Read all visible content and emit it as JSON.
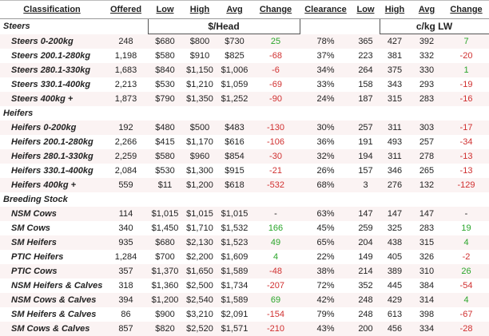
{
  "header": [
    "Classification",
    "Offered",
    "Low",
    "High",
    "Avg",
    "Change",
    "Clearance",
    "Low",
    "High",
    "Avg",
    "Change"
  ],
  "units": [
    "$/Head",
    "c/kg LW"
  ],
  "sections": [
    {
      "title": "Steers",
      "rows": [
        [
          "Steers 0-200kg",
          "248",
          "$680",
          "$800",
          "$730",
          "25",
          "78%",
          "365",
          "427",
          "392",
          "7"
        ],
        [
          "Steers 200.1-280kg",
          "1,198",
          "$580",
          "$910",
          "$825",
          "-68",
          "37%",
          "223",
          "381",
          "332",
          "-20"
        ],
        [
          "Steers 280.1-330kg",
          "1,683",
          "$840",
          "$1,150",
          "$1,006",
          "-6",
          "34%",
          "264",
          "375",
          "330",
          "1"
        ],
        [
          "Steers 330.1-400kg",
          "2,213",
          "$530",
          "$1,210",
          "$1,059",
          "-69",
          "33%",
          "158",
          "343",
          "293",
          "-19"
        ],
        [
          "Steers 400kg +",
          "1,873",
          "$790",
          "$1,350",
          "$1,252",
          "-90",
          "24%",
          "187",
          "315",
          "283",
          "-16"
        ]
      ]
    },
    {
      "title": "Heifers",
      "rows": [
        [
          "Heifers 0-200kg",
          "192",
          "$480",
          "$500",
          "$483",
          "-130",
          "30%",
          "257",
          "311",
          "303",
          "-17"
        ],
        [
          "Heifers 200.1-280kg",
          "2,266",
          "$415",
          "$1,170",
          "$616",
          "-106",
          "36%",
          "191",
          "493",
          "257",
          "-34"
        ],
        [
          "Heifers 280.1-330kg",
          "2,259",
          "$580",
          "$960",
          "$854",
          "-30",
          "32%",
          "194",
          "311",
          "278",
          "-13"
        ],
        [
          "Heifers 330.1-400kg",
          "2,084",
          "$530",
          "$1,300",
          "$915",
          "-21",
          "26%",
          "157",
          "346",
          "265",
          "-13"
        ],
        [
          "Heifers 400kg +",
          "559",
          "$11",
          "$1,200",
          "$618",
          "-532",
          "68%",
          "3",
          "276",
          "132",
          "-129"
        ]
      ]
    },
    {
      "title": "Breeding Stock",
      "rows": [
        [
          "NSM Cows",
          "114",
          "$1,015",
          "$1,015",
          "$1,015",
          "-",
          "63%",
          "147",
          "147",
          "147",
          "-"
        ],
        [
          "SM Cows",
          "340",
          "$1,450",
          "$1,710",
          "$1,532",
          "166",
          "45%",
          "259",
          "325",
          "283",
          "19"
        ],
        [
          "SM Heifers",
          "935",
          "$680",
          "$2,130",
          "$1,523",
          "49",
          "65%",
          "204",
          "438",
          "315",
          "4"
        ],
        [
          "PTIC Heifers",
          "1,284",
          "$700",
          "$2,200",
          "$1,609",
          "4",
          "22%",
          "149",
          "405",
          "326",
          "-2"
        ],
        [
          "PTIC Cows",
          "357",
          "$1,370",
          "$1,650",
          "$1,589",
          "-48",
          "38%",
          "214",
          "389",
          "310",
          "26"
        ],
        [
          "NSM Heifers & Calves",
          "318",
          "$1,360",
          "$2,500",
          "$1,734",
          "-207",
          "72%",
          "352",
          "445",
          "384",
          "-54"
        ],
        [
          "NSM Cows & Calves",
          "394",
          "$1,200",
          "$2,540",
          "$1,589",
          "69",
          "42%",
          "248",
          "429",
          "314",
          "4"
        ],
        [
          "SM Heifers & Calves",
          "86",
          "$900",
          "$3,210",
          "$2,091",
          "-154",
          "79%",
          "248",
          "613",
          "398",
          "-67"
        ],
        [
          "SM Cows & Calves",
          "857",
          "$820",
          "$2,520",
          "$1,571",
          "-210",
          "43%",
          "200",
          "456",
          "334",
          "-28"
        ]
      ]
    }
  ]
}
